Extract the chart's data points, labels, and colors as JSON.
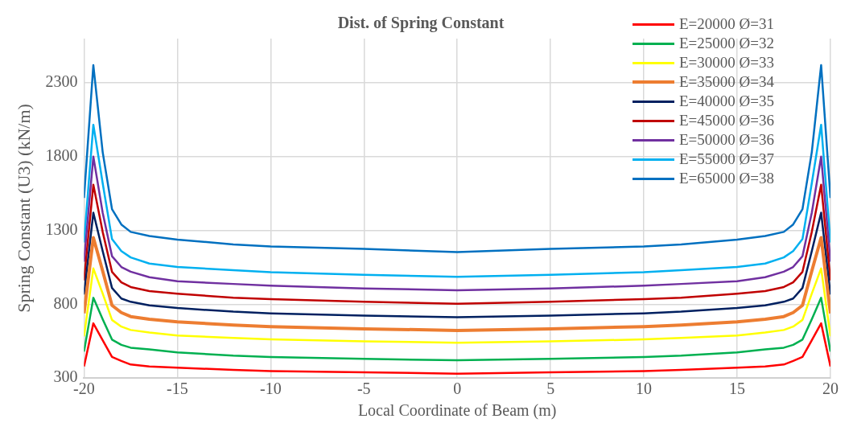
{
  "chart_data": {
    "type": "line",
    "title": "Dist. of Spring Constant",
    "xlabel": "Local Coordinate of Beam (m)",
    "ylabel": "Spring Constant (U3) (kN/m)",
    "x": [
      -20,
      -19.5,
      -19,
      -18.5,
      -18,
      -17.5,
      -16.5,
      -15,
      -12,
      -10,
      -5,
      0,
      5,
      10,
      12,
      15,
      16.5,
      17.5,
      18,
      18.5,
      19,
      19.5,
      20
    ],
    "xlim": [
      -20,
      20
    ],
    "xticks": [
      -20,
      -15,
      -10,
      -5,
      0,
      5,
      10,
      15,
      20
    ],
    "ylim": [
      300,
      2600
    ],
    "yticks": [
      300,
      800,
      1300,
      1800,
      2300
    ],
    "grid": true,
    "legend": "top right",
    "marker": "none",
    "line_style": "solid",
    "series": [
      {
        "name": "E=20000 Ø=31",
        "color": "#ff0000",
        "values": [
          378,
          670,
          556,
          442,
          415,
          391,
          378,
          369,
          355,
          347,
          338,
          329,
          338,
          347,
          355,
          369,
          378,
          391,
          415,
          442,
          556,
          670,
          378
        ]
      },
      {
        "name": "E=25000 Ø=32",
        "color": "#00b050",
        "values": [
          478,
          843,
          698,
          560,
          524,
          505,
          493,
          473,
          451,
          442,
          429,
          420,
          429,
          442,
          451,
          473,
          493,
          505,
          524,
          560,
          698,
          843,
          478
        ]
      },
      {
        "name": "E=30000 Ø=33",
        "color": "#ffff00",
        "values": [
          582,
          1042,
          872,
          693,
          648,
          625,
          608,
          588,
          571,
          561,
          548,
          539,
          548,
          561,
          571,
          588,
          608,
          625,
          648,
          693,
          872,
          1042,
          582
        ]
      },
      {
        "name": "E=35000 Ø=34",
        "color": "#ed7d31",
        "values": [
          738,
          1251,
          1025,
          792,
          743,
          716,
          698,
          680,
          659,
          648,
          633,
          622,
          633,
          648,
          659,
          680,
          698,
          716,
          743,
          792,
          1025,
          1251,
          738
        ]
      },
      {
        "name": "E=40000 Ø=35",
        "color": "#002060",
        "values": [
          865,
          1420,
          1160,
          910,
          838,
          816,
          792,
          774,
          749,
          738,
          722,
          711,
          722,
          738,
          749,
          774,
          792,
          816,
          838,
          910,
          1160,
          1420,
          865
        ]
      },
      {
        "name": "E=45000 Ø=36",
        "color": "#c00000",
        "values": [
          961,
          1610,
          1290,
          1019,
          948,
          916,
          889,
          871,
          843,
          834,
          816,
          803,
          816,
          834,
          843,
          871,
          889,
          916,
          948,
          1019,
          1290,
          1610,
          961
        ]
      },
      {
        "name": "E=50000 Ø=36",
        "color": "#7030a0",
        "values": [
          1088,
          1800,
          1420,
          1125,
          1052,
          1020,
          983,
          955,
          937,
          925,
          907,
          894,
          907,
          925,
          937,
          955,
          983,
          1020,
          1052,
          1125,
          1420,
          1800,
          1088
        ]
      },
      {
        "name": "E=55000 Ø=37",
        "color": "#00b0f0",
        "values": [
          1218,
          2016,
          1620,
          1241,
          1160,
          1117,
          1075,
          1052,
          1030,
          1017,
          999,
          985,
          999,
          1017,
          1030,
          1052,
          1075,
          1117,
          1160,
          1241,
          1620,
          2016,
          1218
        ]
      },
      {
        "name": "E=65000 Ø=38",
        "color": "#0070c0",
        "values": [
          1520,
          2420,
          1831,
          1444,
          1340,
          1290,
          1262,
          1238,
          1205,
          1191,
          1175,
          1153,
          1175,
          1191,
          1205,
          1238,
          1262,
          1290,
          1340,
          1444,
          1831,
          2420,
          1520
        ]
      }
    ]
  }
}
